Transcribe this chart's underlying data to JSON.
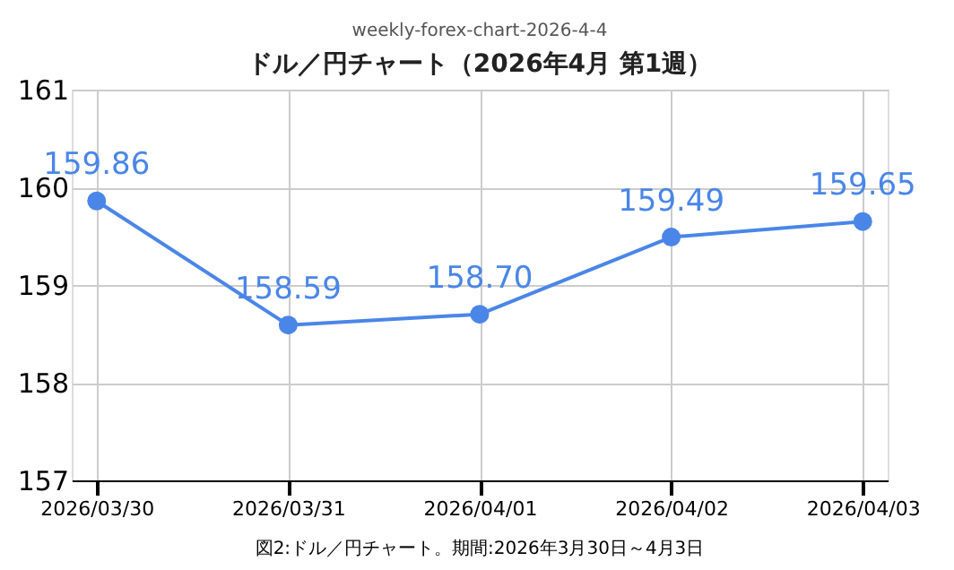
{
  "chart_data": {
    "type": "line",
    "title": "ドル／円チャート（2026年4月 第1週）",
    "annotations": [
      "weekly-forex-chart-2026-4-4",
      "図2:ドル／円チャート。期間:2026年3月30日～4月3日"
    ],
    "categories": [
      "2026/03/30",
      "2026/03/31",
      "2026/04/01",
      "2026/04/02",
      "2026/04/03"
    ],
    "series": [
      {
        "color": "#4a86e8",
        "values": [
          159.86,
          158.59,
          158.7,
          159.49,
          159.65
        ],
        "value_labels": [
          "159.86",
          "158.59",
          "158.70",
          "159.49",
          "159.65"
        ]
      }
    ],
    "ylim": [
      157,
      161
    ],
    "yticks": [
      157,
      158,
      159,
      160,
      161
    ],
    "grid": true,
    "marker": "circle",
    "line_style": "solid"
  }
}
